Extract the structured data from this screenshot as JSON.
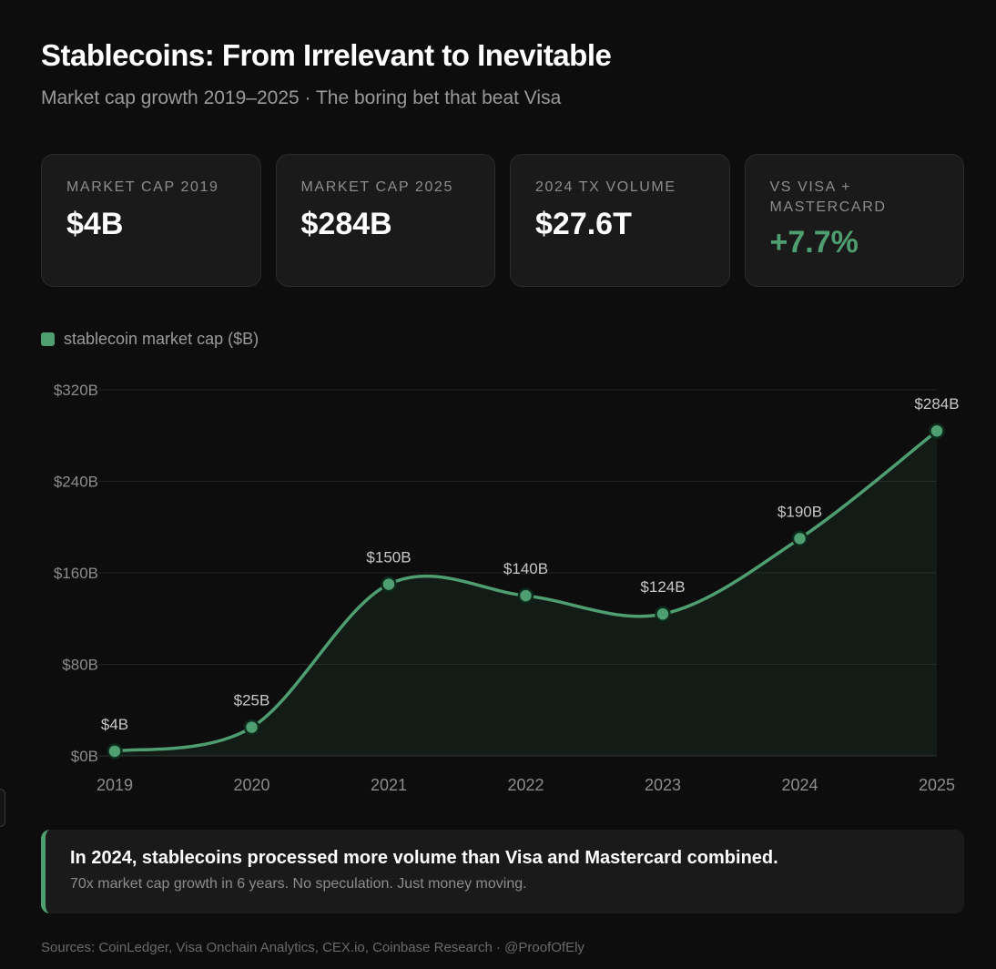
{
  "header": {
    "title": "Stablecoins: From Irrelevant to Inevitable",
    "subtitle": "Market cap growth 2019–2025 · The boring bet that beat Visa"
  },
  "stats": [
    {
      "label": "MARKET CAP 2019",
      "value": "$4B"
    },
    {
      "label": "MARKET CAP 2025",
      "value": "$284B"
    },
    {
      "label": "2024 TX VOLUME",
      "value": "$27.6T"
    },
    {
      "label": "VS VISA + MASTERCARD",
      "value": "+7.7%"
    }
  ],
  "colors": {
    "accent": "#4f9e72",
    "background": "#0d0d0d",
    "card": "#1a1a1a"
  },
  "chart_data": {
    "type": "area",
    "categories": [
      "2019",
      "2020",
      "2021",
      "2022",
      "2023",
      "2024",
      "2025"
    ],
    "series": [
      {
        "name": "stablecoin market cap ($B)",
        "values": [
          4,
          25,
          150,
          140,
          124,
          190,
          284
        ]
      }
    ],
    "data_labels": [
      "$4B",
      "$25B",
      "$150B",
      "$140B",
      "$124B",
      "$190B",
      "$284B"
    ],
    "y_ticks": [
      0,
      80,
      160,
      240,
      320
    ],
    "y_tick_labels": [
      "$0B",
      "$80B",
      "$160B",
      "$240B",
      "$320B"
    ],
    "ylim": [
      0,
      320
    ],
    "grid": true,
    "legend_position": "top-left",
    "smooth": true
  },
  "callout": {
    "title": "In 2024, stablecoins processed more volume than Visa and Mastercard combined.",
    "text": "70x market cap growth in 6 years. No speculation. Just money moving."
  },
  "footer": {
    "sources": "Sources: CoinLedger, Visa Onchain Analytics, CEX.io, Coinbase Research · @ProofOfEly"
  }
}
